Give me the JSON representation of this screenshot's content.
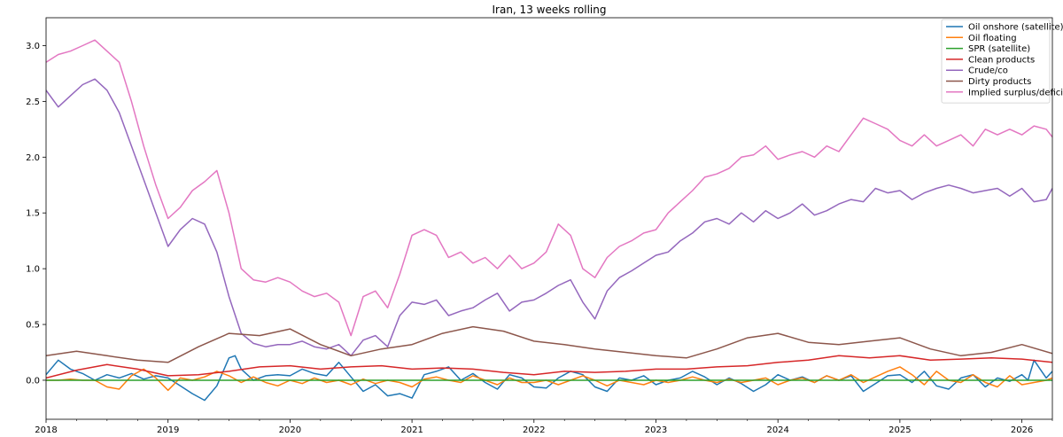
{
  "chart_data": {
    "type": "line",
    "title": "Iran, 13 weeks rolling",
    "xlabel": "",
    "ylabel": "",
    "xlim": [
      2018.0,
      2026.25
    ],
    "ylim": [
      -0.35,
      3.25
    ],
    "x_ticks": [
      {
        "value": 2018,
        "label": "2018"
      },
      {
        "value": 2019,
        "label": "2019"
      },
      {
        "value": 2020,
        "label": "2020"
      },
      {
        "value": 2021,
        "label": "2021"
      },
      {
        "value": 2022,
        "label": "2022"
      },
      {
        "value": 2023,
        "label": "2023"
      },
      {
        "value": 2024,
        "label": "2024"
      },
      {
        "value": 2025,
        "label": "2025"
      },
      {
        "value": 2026,
        "label": "2026"
      }
    ],
    "y_ticks": [
      {
        "value": 0.0,
        "label": "0.0"
      },
      {
        "value": 0.5,
        "label": "0.5"
      },
      {
        "value": 1.0,
        "label": "1.0"
      },
      {
        "value": 1.5,
        "label": "1.5"
      },
      {
        "value": 2.0,
        "label": "2.0"
      },
      {
        "value": 2.5,
        "label": "2.5"
      },
      {
        "value": 3.0,
        "label": "3.0"
      }
    ],
    "grid": false,
    "legend_position": "top-right",
    "series": [
      {
        "name": "Oil onshore (satellite)",
        "color": "#1f77b4",
        "x": [
          2018.0,
          2018.1,
          2018.2,
          2018.3,
          2018.4,
          2018.5,
          2018.6,
          2018.7,
          2018.8,
          2018.9,
          2019.0,
          2019.1,
          2019.2,
          2019.3,
          2019.4,
          2019.5,
          2019.55,
          2019.6,
          2019.7,
          2019.8,
          2019.9,
          2020.0,
          2020.1,
          2020.2,
          2020.3,
          2020.4,
          2020.5,
          2020.6,
          2020.7,
          2020.8,
          2020.9,
          2021.0,
          2021.1,
          2021.2,
          2021.3,
          2021.4,
          2021.5,
          2021.6,
          2021.7,
          2021.8,
          2021.9,
          2022.0,
          2022.1,
          2022.2,
          2022.3,
          2022.4,
          2022.5,
          2022.6,
          2022.7,
          2022.8,
          2022.9,
          2023.0,
          2023.1,
          2023.2,
          2023.3,
          2023.4,
          2023.5,
          2023.6,
          2023.7,
          2023.8,
          2023.9,
          2024.0,
          2024.1,
          2024.2,
          2024.3,
          2024.4,
          2024.5,
          2024.6,
          2024.7,
          2024.8,
          2024.9,
          2025.0,
          2025.1,
          2025.2,
          2025.3,
          2025.4,
          2025.5,
          2025.6,
          2025.7,
          2025.8,
          2025.9,
          2026.0,
          2026.05,
          2026.1,
          2026.15,
          2026.2,
          2026.25
        ],
        "y": [
          0.05,
          0.18,
          0.1,
          0.06,
          0.0,
          0.05,
          0.02,
          0.06,
          0.01,
          0.04,
          0.02,
          -0.05,
          -0.12,
          -0.18,
          -0.05,
          0.2,
          0.22,
          0.1,
          0.0,
          0.04,
          0.05,
          0.04,
          0.1,
          0.06,
          0.04,
          0.16,
          0.03,
          -0.1,
          -0.04,
          -0.14,
          -0.12,
          -0.16,
          0.05,
          0.08,
          0.12,
          0.0,
          0.06,
          -0.02,
          -0.08,
          0.05,
          0.02,
          -0.06,
          -0.07,
          0.02,
          0.08,
          0.05,
          -0.06,
          -0.1,
          0.02,
          0.0,
          0.04,
          -0.04,
          0.0,
          0.02,
          0.08,
          0.03,
          -0.04,
          0.02,
          -0.03,
          -0.1,
          -0.04,
          0.05,
          0.0,
          0.03,
          -0.02,
          0.04,
          0.0,
          0.04,
          -0.1,
          -0.03,
          0.04,
          0.05,
          -0.02,
          0.08,
          -0.05,
          -0.08,
          0.02,
          0.05,
          -0.06,
          0.02,
          -0.01,
          0.05,
          0.0,
          0.18,
          0.1,
          0.02,
          0.08
        ]
      },
      {
        "name": "Oil floating",
        "color": "#ff7f0e",
        "x": [
          2018.0,
          2018.1,
          2018.2,
          2018.3,
          2018.4,
          2018.5,
          2018.6,
          2018.7,
          2018.8,
          2018.9,
          2019.0,
          2019.1,
          2019.2,
          2019.3,
          2019.4,
          2019.5,
          2019.6,
          2019.7,
          2019.8,
          2019.9,
          2020.0,
          2020.1,
          2020.2,
          2020.3,
          2020.4,
          2020.5,
          2020.6,
          2020.7,
          2020.8,
          2020.9,
          2021.0,
          2021.1,
          2021.2,
          2021.3,
          2021.4,
          2021.5,
          2021.6,
          2021.7,
          2021.8,
          2021.9,
          2022.0,
          2022.1,
          2022.2,
          2022.3,
          2022.4,
          2022.5,
          2022.6,
          2022.7,
          2022.8,
          2022.9,
          2023.0,
          2023.1,
          2023.2,
          2023.3,
          2023.4,
          2023.5,
          2023.6,
          2023.7,
          2023.8,
          2023.9,
          2024.0,
          2024.1,
          2024.2,
          2024.3,
          2024.4,
          2024.5,
          2024.6,
          2024.7,
          2024.8,
          2024.9,
          2025.0,
          2025.1,
          2025.2,
          2025.3,
          2025.4,
          2025.5,
          2025.6,
          2025.7,
          2025.8,
          2025.9,
          2026.0,
          2026.1,
          2026.2,
          2026.25
        ],
        "y": [
          0.0,
          0.0,
          0.01,
          0.0,
          0.0,
          -0.06,
          -0.08,
          0.04,
          0.1,
          0.02,
          -0.09,
          0.02,
          0.0,
          0.03,
          0.08,
          0.04,
          -0.02,
          0.03,
          -0.02,
          -0.05,
          0.0,
          -0.03,
          0.02,
          -0.02,
          0.0,
          -0.04,
          0.01,
          -0.03,
          0.0,
          -0.02,
          -0.06,
          0.01,
          0.03,
          0.0,
          -0.02,
          0.04,
          0.0,
          -0.04,
          0.02,
          -0.02,
          -0.02,
          0.0,
          -0.04,
          0.0,
          0.04,
          0.0,
          -0.05,
          0.0,
          -0.02,
          -0.04,
          0.0,
          -0.02,
          0.0,
          0.03,
          0.0,
          -0.02,
          0.01,
          -0.02,
          0.0,
          0.02,
          -0.04,
          0.0,
          0.02,
          -0.02,
          0.04,
          0.0,
          0.05,
          -0.02,
          0.03,
          0.08,
          0.12,
          0.05,
          -0.04,
          0.08,
          0.0,
          -0.02,
          0.05,
          -0.02,
          -0.06,
          0.04,
          -0.04,
          -0.02,
          0.0,
          0.02
        ]
      },
      {
        "name": "SPR (satellite)",
        "color": "#2ca02c",
        "x": [
          2018.0,
          2026.25
        ],
        "y": [
          0.0,
          0.0
        ]
      },
      {
        "name": "Clean products",
        "color": "#d62728",
        "x": [
          2018.0,
          2018.25,
          2018.5,
          2018.75,
          2019.0,
          2019.25,
          2019.5,
          2019.75,
          2020.0,
          2020.25,
          2020.5,
          2020.75,
          2021.0,
          2021.25,
          2021.5,
          2021.75,
          2022.0,
          2022.25,
          2022.5,
          2022.75,
          2023.0,
          2023.25,
          2023.5,
          2023.75,
          2024.0,
          2024.25,
          2024.5,
          2024.75,
          2025.0,
          2025.25,
          2025.5,
          2025.75,
          2026.0,
          2026.25
        ],
        "y": [
          0.02,
          0.09,
          0.14,
          0.1,
          0.04,
          0.05,
          0.08,
          0.12,
          0.13,
          0.1,
          0.12,
          0.13,
          0.1,
          0.11,
          0.1,
          0.07,
          0.05,
          0.08,
          0.07,
          0.08,
          0.1,
          0.1,
          0.12,
          0.13,
          0.16,
          0.18,
          0.22,
          0.2,
          0.22,
          0.18,
          0.19,
          0.2,
          0.19,
          0.16
        ]
      },
      {
        "name": "Crude/co",
        "color": "#9467bd",
        "x": [
          2018.0,
          2018.1,
          2018.2,
          2018.3,
          2018.4,
          2018.5,
          2018.6,
          2018.7,
          2018.8,
          2018.9,
          2019.0,
          2019.1,
          2019.2,
          2019.3,
          2019.4,
          2019.5,
          2019.6,
          2019.7,
          2019.8,
          2019.9,
          2020.0,
          2020.1,
          2020.2,
          2020.3,
          2020.4,
          2020.5,
          2020.6,
          2020.7,
          2020.8,
          2020.9,
          2021.0,
          2021.1,
          2021.2,
          2021.3,
          2021.4,
          2021.5,
          2021.6,
          2021.7,
          2021.8,
          2021.9,
          2022.0,
          2022.1,
          2022.2,
          2022.3,
          2022.4,
          2022.5,
          2022.6,
          2022.7,
          2022.8,
          2022.9,
          2023.0,
          2023.1,
          2023.2,
          2023.3,
          2023.4,
          2023.5,
          2023.6,
          2023.7,
          2023.8,
          2023.9,
          2024.0,
          2024.1,
          2024.2,
          2024.3,
          2024.4,
          2024.5,
          2024.6,
          2024.7,
          2024.8,
          2024.9,
          2025.0,
          2025.1,
          2025.2,
          2025.3,
          2025.4,
          2025.5,
          2025.6,
          2025.7,
          2025.8,
          2025.9,
          2026.0,
          2026.1,
          2026.2,
          2026.25
        ],
        "y": [
          2.6,
          2.45,
          2.55,
          2.65,
          2.7,
          2.6,
          2.4,
          2.1,
          1.8,
          1.5,
          1.2,
          1.35,
          1.45,
          1.4,
          1.15,
          0.75,
          0.42,
          0.33,
          0.3,
          0.32,
          0.32,
          0.35,
          0.3,
          0.28,
          0.32,
          0.22,
          0.36,
          0.4,
          0.3,
          0.58,
          0.7,
          0.68,
          0.72,
          0.58,
          0.62,
          0.65,
          0.72,
          0.78,
          0.62,
          0.7,
          0.72,
          0.78,
          0.85,
          0.9,
          0.7,
          0.55,
          0.8,
          0.92,
          0.98,
          1.05,
          1.12,
          1.15,
          1.25,
          1.32,
          1.42,
          1.45,
          1.4,
          1.5,
          1.42,
          1.52,
          1.45,
          1.5,
          1.58,
          1.48,
          1.52,
          1.58,
          1.62,
          1.6,
          1.72,
          1.68,
          1.7,
          1.62,
          1.68,
          1.72,
          1.75,
          1.72,
          1.68,
          1.7,
          1.72,
          1.65,
          1.72,
          1.6,
          1.62,
          1.72
        ]
      },
      {
        "name": "Dirty products",
        "color": "#8c564b",
        "x": [
          2018.0,
          2018.25,
          2018.5,
          2018.75,
          2019.0,
          2019.25,
          2019.5,
          2019.75,
          2020.0,
          2020.25,
          2020.5,
          2020.75,
          2021.0,
          2021.25,
          2021.5,
          2021.75,
          2022.0,
          2022.25,
          2022.5,
          2022.75,
          2023.0,
          2023.25,
          2023.5,
          2023.75,
          2024.0,
          2024.25,
          2024.5,
          2024.75,
          2025.0,
          2025.25,
          2025.5,
          2025.75,
          2026.0,
          2026.25
        ],
        "y": [
          0.22,
          0.26,
          0.22,
          0.18,
          0.16,
          0.3,
          0.42,
          0.4,
          0.46,
          0.32,
          0.22,
          0.28,
          0.32,
          0.42,
          0.48,
          0.44,
          0.35,
          0.32,
          0.28,
          0.25,
          0.22,
          0.2,
          0.28,
          0.38,
          0.42,
          0.34,
          0.32,
          0.35,
          0.38,
          0.28,
          0.22,
          0.25,
          0.32,
          0.24
        ]
      },
      {
        "name": "Implied surplus/deficit",
        "color": "#e377c2",
        "x": [
          2018.0,
          2018.1,
          2018.2,
          2018.3,
          2018.4,
          2018.5,
          2018.6,
          2018.7,
          2018.8,
          2018.9,
          2019.0,
          2019.1,
          2019.2,
          2019.3,
          2019.4,
          2019.5,
          2019.6,
          2019.7,
          2019.8,
          2019.9,
          2020.0,
          2020.1,
          2020.2,
          2020.3,
          2020.4,
          2020.5,
          2020.6,
          2020.7,
          2020.8,
          2020.9,
          2021.0,
          2021.1,
          2021.2,
          2021.3,
          2021.4,
          2021.5,
          2021.6,
          2021.7,
          2021.8,
          2021.9,
          2022.0,
          2022.1,
          2022.2,
          2022.3,
          2022.4,
          2022.5,
          2022.6,
          2022.7,
          2022.8,
          2022.9,
          2023.0,
          2023.1,
          2023.2,
          2023.3,
          2023.4,
          2023.5,
          2023.6,
          2023.7,
          2023.8,
          2023.9,
          2024.0,
          2024.1,
          2024.2,
          2024.3,
          2024.4,
          2024.5,
          2024.6,
          2024.7,
          2024.8,
          2024.9,
          2025.0,
          2025.1,
          2025.2,
          2025.3,
          2025.4,
          2025.5,
          2025.6,
          2025.7,
          2025.8,
          2025.9,
          2026.0,
          2026.1,
          2026.2,
          2026.25
        ],
        "y": [
          2.85,
          2.92,
          2.95,
          3.0,
          3.05,
          2.95,
          2.85,
          2.5,
          2.1,
          1.75,
          1.45,
          1.55,
          1.7,
          1.78,
          1.88,
          1.5,
          1.0,
          0.9,
          0.88,
          0.92,
          0.88,
          0.8,
          0.75,
          0.78,
          0.7,
          0.4,
          0.75,
          0.8,
          0.65,
          0.95,
          1.3,
          1.35,
          1.3,
          1.1,
          1.15,
          1.05,
          1.1,
          1.0,
          1.12,
          1.0,
          1.05,
          1.15,
          1.4,
          1.3,
          1.0,
          0.92,
          1.1,
          1.2,
          1.25,
          1.32,
          1.35,
          1.5,
          1.6,
          1.7,
          1.82,
          1.85,
          1.9,
          2.0,
          2.02,
          2.1,
          1.98,
          2.02,
          2.05,
          2.0,
          2.1,
          2.05,
          2.2,
          2.35,
          2.3,
          2.25,
          2.15,
          2.1,
          2.2,
          2.1,
          2.15,
          2.2,
          2.1,
          2.25,
          2.2,
          2.25,
          2.2,
          2.28,
          2.25,
          2.18
        ]
      }
    ]
  }
}
